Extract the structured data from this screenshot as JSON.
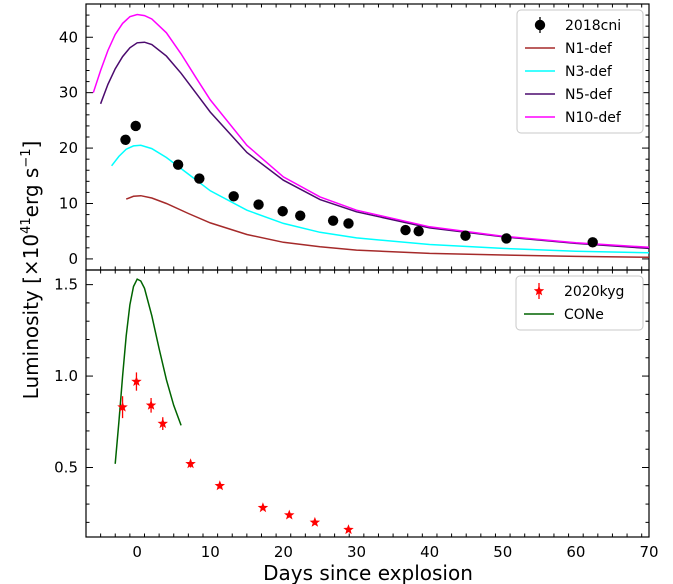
{
  "chart_data": [
    {
      "type": "line",
      "panel": "top",
      "xlim": [
        -7,
        70
      ],
      "ylim": [
        -2,
        46
      ],
      "yticks": [
        0,
        10,
        20,
        30,
        40
      ],
      "legend_position": "top-right",
      "observed": {
        "name": "2018cni",
        "marker": "circle",
        "color": "#000000",
        "x": [
          -1.6,
          -0.2,
          5.6,
          8.5,
          13.2,
          16.6,
          19.9,
          22.3,
          26.8,
          28.9,
          36.7,
          38.5,
          44.9,
          50.5,
          62.3
        ],
        "y": [
          21.5,
          24.0,
          17.0,
          14.5,
          11.3,
          9.8,
          8.6,
          7.8,
          6.9,
          6.4,
          5.2,
          5.0,
          4.2,
          3.7,
          3.0
        ],
        "yerr": [
          0.8,
          0.9,
          0.5,
          0.5,
          0.4,
          0.4,
          0.3,
          0.3,
          0.3,
          0.3,
          0.2,
          0.2,
          0.2,
          0.2,
          0.2
        ]
      },
      "series": [
        {
          "name": "N1-def",
          "color": "#a52a2a",
          "x": [
            -1.5,
            -0.5,
            0.5,
            2,
            4,
            7,
            10,
            15,
            20,
            25,
            30,
            40,
            50,
            60,
            70
          ],
          "y": [
            10.8,
            11.3,
            11.4,
            11.0,
            10.0,
            8.2,
            6.5,
            4.4,
            3.0,
            2.2,
            1.6,
            1.0,
            0.7,
            0.45,
            0.3
          ]
        },
        {
          "name": "N3-def",
          "color": "#00ffff",
          "x": [
            -3.5,
            -2.5,
            -1.5,
            -0.5,
            0.5,
            2,
            4,
            7,
            10,
            15,
            20,
            25,
            30,
            40,
            50,
            60,
            70
          ],
          "y": [
            16.8,
            18.5,
            19.8,
            20.4,
            20.5,
            19.9,
            18.3,
            15.3,
            12.3,
            8.8,
            6.4,
            4.8,
            3.8,
            2.6,
            1.9,
            1.4,
            1.1
          ]
        },
        {
          "name": "N5-def",
          "color": "#4b0a6e",
          "x": [
            -5,
            -4,
            -3,
            -2,
            -1,
            0,
            1,
            2,
            4,
            6,
            8,
            10,
            15,
            20,
            25,
            30,
            40,
            50,
            60,
            70
          ],
          "y": [
            28.0,
            31.5,
            34.3,
            36.5,
            38.1,
            39.0,
            39.1,
            38.7,
            36.6,
            33.5,
            30.0,
            26.5,
            19.2,
            14.2,
            10.7,
            8.5,
            5.6,
            4.0,
            2.8,
            1.9
          ]
        },
        {
          "name": "N10-def",
          "color": "#ff00ff",
          "x": [
            -6,
            -5,
            -4,
            -3,
            -2,
            -1,
            0,
            1,
            2,
            4,
            6,
            8,
            10,
            15,
            20,
            25,
            30,
            40,
            50,
            60,
            70
          ],
          "y": [
            30.0,
            34.0,
            37.6,
            40.5,
            42.5,
            43.7,
            44.1,
            43.9,
            43.3,
            40.8,
            37.0,
            32.8,
            28.7,
            20.5,
            14.8,
            11.2,
            8.8,
            5.8,
            4.1,
            2.9,
            2.1
          ]
        }
      ]
    },
    {
      "type": "line",
      "panel": "bottom",
      "xlim": [
        -7,
        70
      ],
      "ylim": [
        0.12,
        1.58
      ],
      "yticks": [
        0.5,
        1.0,
        1.5
      ],
      "legend_position": "top-right",
      "observed": {
        "name": "2020kyg",
        "marker": "star",
        "color": "#ff0000",
        "x": [
          -2.0,
          -0.1,
          1.9,
          3.5,
          7.3,
          11.3,
          17.2,
          20.8,
          24.3,
          28.9
        ],
        "y": [
          0.83,
          0.97,
          0.84,
          0.74,
          0.52,
          0.4,
          0.28,
          0.24,
          0.2,
          0.16
        ],
        "yerr": [
          0.06,
          0.05,
          0.04,
          0.035,
          0.02,
          0.015,
          0.012,
          0.01,
          0.008,
          0.008
        ]
      },
      "series": [
        {
          "name": "CONe",
          "color": "#006400",
          "x": [
            -3,
            -2.5,
            -2,
            -1.5,
            -1,
            -0.5,
            0,
            0.5,
            1,
            2,
            3,
            4,
            5,
            6
          ],
          "y": [
            0.52,
            0.75,
            1.0,
            1.22,
            1.39,
            1.49,
            1.53,
            1.52,
            1.48,
            1.33,
            1.15,
            0.98,
            0.84,
            0.73
          ]
        }
      ]
    }
  ],
  "axes": {
    "xlabel": "Days since explosion",
    "ylabel": "Luminosity [×10",
    "ylabel_exp": "41",
    "ylabel_mid": "erg s",
    "ylabel_exp2": "−1",
    "ylabel_end": "]",
    "xticks": [
      0,
      10,
      20,
      30,
      40,
      50,
      60,
      70
    ]
  }
}
